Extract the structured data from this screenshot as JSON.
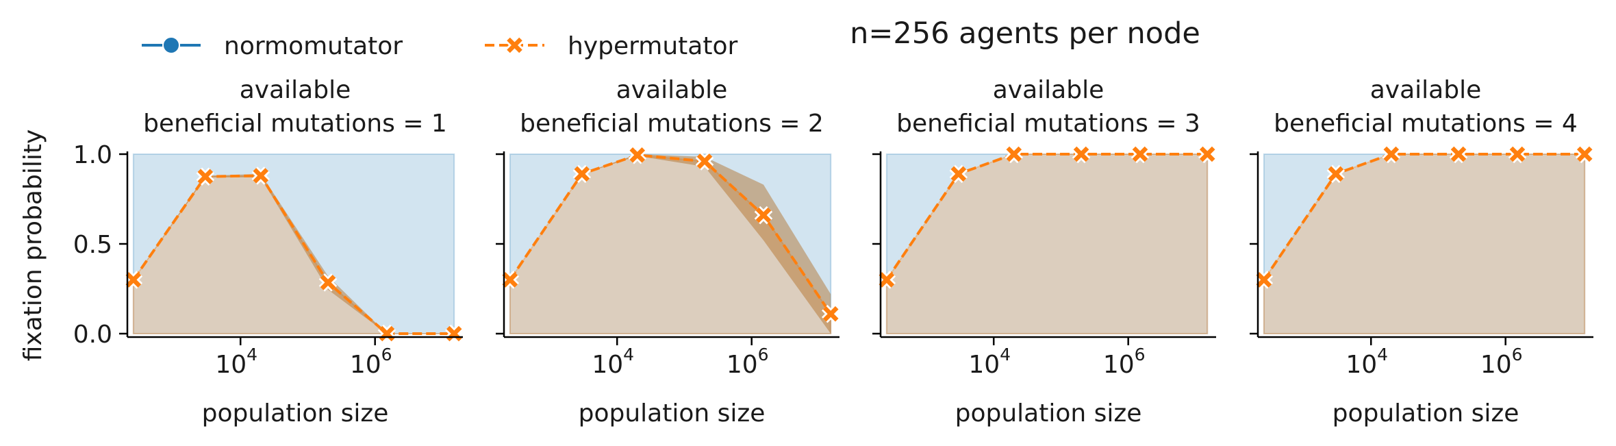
{
  "figure": {
    "suptitle": "n=256 agents per node",
    "ylabel": "fixation probability",
    "legend": {
      "placement": "top-left",
      "entries": [
        {
          "name": "normomutator",
          "color": "#1f77b4",
          "marker": "circle",
          "linestyle": "solid"
        },
        {
          "name": "hypermutator",
          "color": "#ff7f0e",
          "marker": "x",
          "linestyle": "dashed"
        }
      ]
    }
  },
  "chart_data": [
    {
      "type": "line",
      "title": [
        "available",
        "beneficial mutations = 1"
      ],
      "xlabel": "population size",
      "ylabel": "fixation probability",
      "xscale": "log",
      "xticks": [
        "10^4",
        "10^6"
      ],
      "yticks": [
        "0.0",
        "0.5",
        "1.0"
      ],
      "ylim": [
        0,
        1
      ],
      "x": [
        256,
        3000,
        20000,
        200000,
        1500000,
        15000000
      ],
      "series": [
        {
          "name": "normomutator",
          "color": "#1f77b4",
          "values": [
            1,
            1,
            1,
            1,
            1,
            1
          ]
        },
        {
          "name": "hypermutator",
          "color": "#ff7f0e",
          "values": [
            0.3,
            0.875,
            0.88,
            0.285,
            0,
            0
          ],
          "ci_low": [
            0.3,
            0.87,
            0.87,
            0.245,
            0,
            0
          ],
          "ci_high": [
            0.3,
            0.88,
            0.89,
            0.32,
            0,
            0
          ]
        }
      ]
    },
    {
      "type": "line",
      "title": [
        "available",
        "beneficial mutations = 2"
      ],
      "xlabel": "population size",
      "xscale": "log",
      "xticks": [
        "10^4",
        "10^6"
      ],
      "ylim": [
        0,
        1
      ],
      "x": [
        256,
        3000,
        20000,
        200000,
        1500000,
        15000000
      ],
      "series": [
        {
          "name": "normomutator",
          "color": "#1f77b4",
          "values": [
            1,
            1,
            1,
            1,
            1,
            1
          ]
        },
        {
          "name": "hypermutator",
          "color": "#ff7f0e",
          "values": [
            0.3,
            0.89,
            0.995,
            0.96,
            0.66,
            0.11
          ],
          "ci_low": [
            0.3,
            0.89,
            0.99,
            0.93,
            0.52,
            0.0
          ],
          "ci_high": [
            0.3,
            0.89,
            1.0,
            0.985,
            0.83,
            0.22
          ]
        }
      ]
    },
    {
      "type": "line",
      "title": [
        "available",
        "beneficial mutations = 3"
      ],
      "xlabel": "population size",
      "xscale": "log",
      "xticks": [
        "10^4",
        "10^6"
      ],
      "ylim": [
        0,
        1
      ],
      "x": [
        256,
        3000,
        20000,
        200000,
        1500000,
        15000000
      ],
      "series": [
        {
          "name": "normomutator",
          "color": "#1f77b4",
          "values": [
            1,
            1,
            1,
            1,
            1,
            1
          ]
        },
        {
          "name": "hypermutator",
          "color": "#ff7f0e",
          "values": [
            0.3,
            0.89,
            1.0,
            1.0,
            1.0,
            1.0
          ],
          "ci_low": [
            0.3,
            0.89,
            1.0,
            1.0,
            1.0,
            1.0
          ],
          "ci_high": [
            0.3,
            0.89,
            1.0,
            1.0,
            1.0,
            1.0
          ]
        }
      ]
    },
    {
      "type": "line",
      "title": [
        "available",
        "beneficial mutations = 4"
      ],
      "xlabel": "population size",
      "xscale": "log",
      "xticks": [
        "10^4",
        "10^6"
      ],
      "ylim": [
        0,
        1
      ],
      "x": [
        256,
        3000,
        20000,
        200000,
        1500000,
        15000000
      ],
      "series": [
        {
          "name": "normomutator",
          "color": "#1f77b4",
          "values": [
            1,
            1,
            1,
            1,
            1,
            1
          ]
        },
        {
          "name": "hypermutator",
          "color": "#ff7f0e",
          "values": [
            0.3,
            0.89,
            1.0,
            1.0,
            1.0,
            1.0
          ],
          "ci_low": [
            0.3,
            0.89,
            1.0,
            1.0,
            1.0,
            1.0
          ],
          "ci_high": [
            0.3,
            0.89,
            1.0,
            1.0,
            1.0,
            1.0
          ]
        }
      ]
    }
  ]
}
